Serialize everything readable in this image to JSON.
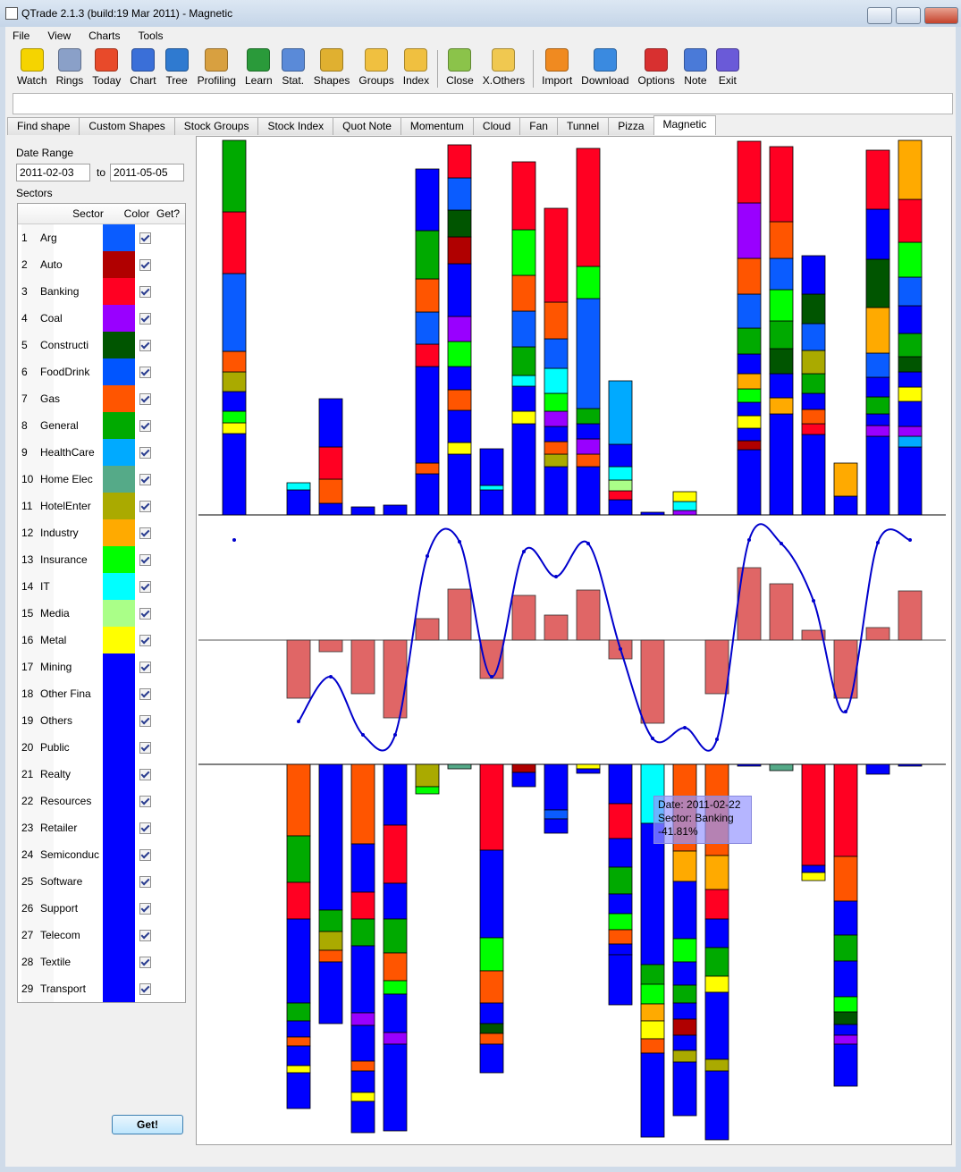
{
  "window": {
    "title": "QTrade 2.1.3 (build:19 Mar 2011) - Magnetic"
  },
  "menu": [
    "File",
    "View",
    "Charts",
    "Tools"
  ],
  "toolbar": [
    [
      "Watch",
      "Rings",
      "Today",
      "Chart",
      "Tree",
      "Profiling",
      "Learn",
      "Stat.",
      "Shapes",
      "Groups",
      "Index"
    ],
    [
      "Close",
      "X.Others"
    ],
    [
      "Import",
      "Download",
      "Options",
      "Note",
      "Exit"
    ]
  ],
  "tabs": {
    "items": [
      "Find shape",
      "Custom Shapes",
      "Stock Groups",
      "Stock Index",
      "Quot Note",
      "Momentum",
      "Cloud",
      "Fan",
      "Tunnel",
      "Pizza",
      "Magnetic"
    ],
    "active": 10
  },
  "panel": {
    "date_range_label": "Date Range",
    "from": "2011-02-03",
    "to_label": "to",
    "to": "2011-05-05",
    "sectors_label": "Sectors",
    "button": "Get!"
  },
  "sectors": {
    "columns": [
      "Sector",
      "Color",
      "Get?"
    ],
    "rows": [
      {
        "no": 1,
        "name": "Arg",
        "color": "#0a5cff",
        "get": true
      },
      {
        "no": 2,
        "name": "Auto",
        "color": "#b00000",
        "get": true
      },
      {
        "no": 3,
        "name": "Banking",
        "color": "#ff0022",
        "get": true
      },
      {
        "no": 4,
        "name": "Coal",
        "color": "#9900ff",
        "get": true
      },
      {
        "no": 5,
        "name": "Constructi",
        "color": "#005500",
        "get": true
      },
      {
        "no": 6,
        "name": "FoodDrink",
        "color": "#0055ff",
        "get": true
      },
      {
        "no": 7,
        "name": "Gas",
        "color": "#ff5500",
        "get": true
      },
      {
        "no": 8,
        "name": "General",
        "color": "#00aa00",
        "get": true
      },
      {
        "no": 9,
        "name": "HealthCare",
        "color": "#00aaff",
        "get": true
      },
      {
        "no": 10,
        "name": "Home Elec",
        "color": "#55aa88",
        "get": true
      },
      {
        "no": 11,
        "name": "HotelEnter",
        "color": "#aaaa00",
        "get": true
      },
      {
        "no": 12,
        "name": "Industry",
        "color": "#ffaa00",
        "get": true
      },
      {
        "no": 13,
        "name": "Insurance",
        "color": "#00ff00",
        "get": true
      },
      {
        "no": 14,
        "name": "IT",
        "color": "#00ffff",
        "get": true
      },
      {
        "no": 15,
        "name": "Media",
        "color": "#aaff88",
        "get": true
      },
      {
        "no": 16,
        "name": "Metal",
        "color": "#ffff00",
        "get": true
      },
      {
        "no": 17,
        "name": "Mining",
        "color": "#0000ff",
        "get": true
      },
      {
        "no": 18,
        "name": "Other Fina",
        "color": "#0000ff",
        "get": true
      },
      {
        "no": 19,
        "name": "Others",
        "color": "#0000ff",
        "get": true
      },
      {
        "no": 20,
        "name": "Public",
        "color": "#0000ff",
        "get": true
      },
      {
        "no": 21,
        "name": "Realty",
        "color": "#0000ff",
        "get": true
      },
      {
        "no": 22,
        "name": "Resources",
        "color": "#0000ff",
        "get": true
      },
      {
        "no": 23,
        "name": "Retailer",
        "color": "#0000ff",
        "get": true
      },
      {
        "no": 24,
        "name": "Semiconduc",
        "color": "#0000ff",
        "get": true
      },
      {
        "no": 25,
        "name": "Software",
        "color": "#0000ff",
        "get": true
      },
      {
        "no": 26,
        "name": "Support",
        "color": "#0000ff",
        "get": true
      },
      {
        "no": 27,
        "name": "Telecom",
        "color": "#0000ff",
        "get": true
      },
      {
        "no": 28,
        "name": "Textile",
        "color": "#0000ff",
        "get": true
      },
      {
        "no": 29,
        "name": "Transport",
        "color": "#0000ff",
        "get": true
      }
    ]
  },
  "chart_data": [
    {
      "type": "stacked-bar",
      "direction": "up",
      "ylim": [
        0,
        420
      ],
      "stacks": [
        [
          [
            16,
            91
          ],
          [
            15,
            12
          ],
          [
            12,
            13
          ],
          [
            17,
            22
          ],
          [
            10,
            22
          ],
          [
            6,
            23
          ],
          [
            0,
            87
          ],
          [
            2,
            69
          ],
          [
            7,
            80
          ]
        ],
        [],
        [
          [
            16,
            28
          ],
          [
            13,
            8
          ]
        ],
        [
          [
            16,
            13
          ],
          [
            6,
            27
          ],
          [
            2,
            36
          ],
          [
            17,
            54
          ]
        ],
        [
          [
            16,
            9
          ]
        ],
        [
          [
            16,
            11
          ]
        ],
        [
          [
            16,
            46
          ],
          [
            6,
            12
          ],
          [
            17,
            108
          ],
          [
            2,
            25
          ],
          [
            0,
            36
          ],
          [
            6,
            37
          ],
          [
            7,
            54
          ],
          [
            18,
            69
          ]
        ],
        [
          [
            16,
            68
          ],
          [
            15,
            13
          ],
          [
            17,
            36
          ],
          [
            6,
            23
          ],
          [
            18,
            26
          ],
          [
            12,
            28
          ],
          [
            3,
            28
          ],
          [
            19,
            59
          ],
          [
            1,
            30
          ],
          [
            4,
            30
          ],
          [
            0,
            36
          ],
          [
            2,
            37
          ]
        ],
        [
          [
            16,
            28
          ],
          [
            13,
            5
          ],
          [
            17,
            41
          ]
        ],
        [
          [
            16,
            102
          ],
          [
            15,
            14
          ],
          [
            17,
            28
          ],
          [
            13,
            12
          ],
          [
            7,
            32
          ],
          [
            0,
            40
          ],
          [
            6,
            40
          ],
          [
            12,
            51
          ],
          [
            2,
            76
          ]
        ],
        [
          [
            16,
            54
          ],
          [
            10,
            14
          ],
          [
            6,
            14
          ],
          [
            17,
            17
          ],
          [
            3,
            17
          ],
          [
            12,
            20
          ],
          [
            13,
            28
          ],
          [
            0,
            33
          ],
          [
            6,
            41
          ],
          [
            2,
            105
          ]
        ],
        [
          [
            16,
            54
          ],
          [
            6,
            14
          ],
          [
            3,
            17
          ],
          [
            17,
            17
          ],
          [
            7,
            17
          ],
          [
            0,
            123
          ],
          [
            12,
            36
          ],
          [
            2,
            132
          ]
        ],
        [
          [
            16,
            17
          ],
          [
            2,
            10
          ],
          [
            14,
            12
          ],
          [
            13,
            15
          ],
          [
            17,
            25
          ],
          [
            8,
            71
          ]
        ],
        [
          [
            16,
            3
          ]
        ],
        [
          [
            3,
            5
          ],
          [
            13,
            10
          ],
          [
            15,
            11
          ]
        ],
        [],
        [
          [
            16,
            73
          ],
          [
            1,
            10
          ],
          [
            17,
            14
          ],
          [
            15,
            14
          ],
          [
            18,
            15
          ],
          [
            12,
            15
          ],
          [
            11,
            17
          ],
          [
            19,
            22
          ],
          [
            7,
            29
          ],
          [
            0,
            38
          ],
          [
            6,
            40
          ],
          [
            3,
            62
          ],
          [
            2,
            69
          ]
        ],
        [
          [
            16,
            113
          ],
          [
            11,
            18
          ],
          [
            17,
            27
          ],
          [
            4,
            28
          ],
          [
            7,
            31
          ],
          [
            12,
            35
          ],
          [
            0,
            35
          ],
          [
            6,
            41
          ],
          [
            2,
            84
          ]
        ],
        [
          [
            16,
            90
          ],
          [
            2,
            12
          ],
          [
            6,
            16
          ],
          [
            17,
            18
          ],
          [
            7,
            22
          ],
          [
            10,
            26
          ],
          [
            0,
            30
          ],
          [
            4,
            33
          ],
          [
            18,
            43
          ]
        ],
        [
          [
            16,
            21
          ],
          [
            11,
            37
          ]
        ],
        [
          [
            16,
            88
          ],
          [
            3,
            12
          ],
          [
            17,
            13
          ],
          [
            7,
            19
          ],
          [
            18,
            22
          ],
          [
            0,
            27
          ],
          [
            11,
            51
          ],
          [
            4,
            54
          ],
          [
            19,
            56
          ],
          [
            2,
            66
          ]
        ],
        [
          [
            16,
            76
          ],
          [
            8,
            12
          ],
          [
            3,
            11
          ],
          [
            17,
            28
          ],
          [
            15,
            16
          ],
          [
            18,
            17
          ],
          [
            4,
            17
          ],
          [
            7,
            26
          ],
          [
            19,
            31
          ],
          [
            0,
            32
          ],
          [
            12,
            39
          ],
          [
            2,
            48
          ],
          [
            11,
            66
          ]
        ]
      ]
    },
    {
      "type": "bar-line",
      "ylim": [
        -140,
        140
      ],
      "bar_color": "#e06666",
      "line_color": "#0000cc",
      "values": [
        0,
        0,
        -65,
        -13,
        -60,
        -87,
        24,
        57,
        -43,
        50,
        28,
        56,
        -21,
        -93,
        0,
        -60,
        81,
        63,
        11,
        -65,
        14,
        55
      ],
      "line": [
        112,
        null,
        -91,
        -41,
        -106,
        -106,
        94,
        110,
        -41,
        99,
        71,
        108,
        -10,
        -110,
        -98,
        -111,
        112,
        108,
        44,
        -80,
        109,
        112
      ]
    },
    {
      "type": "stacked-bar",
      "direction": "down",
      "ylim": [
        0,
        420
      ],
      "stacks": [
        [],
        [],
        [
          [
            6,
            80
          ],
          [
            7,
            52
          ],
          [
            2,
            41
          ],
          [
            16,
            94
          ],
          [
            7,
            20
          ],
          [
            17,
            18
          ],
          [
            6,
            10
          ],
          [
            18,
            22
          ],
          [
            15,
            8
          ],
          [
            16,
            40
          ]
        ],
        [
          [
            16,
            163
          ],
          [
            7,
            24
          ],
          [
            10,
            21
          ],
          [
            6,
            13
          ],
          [
            17,
            69
          ]
        ],
        [
          [
            6,
            89
          ],
          [
            16,
            54
          ],
          [
            2,
            30
          ],
          [
            7,
            30
          ],
          [
            17,
            75
          ],
          [
            3,
            14
          ],
          [
            18,
            40
          ],
          [
            6,
            11
          ],
          [
            16,
            24
          ],
          [
            15,
            10
          ],
          [
            17,
            35
          ]
        ],
        [
          [
            16,
            68
          ],
          [
            2,
            65
          ],
          [
            17,
            40
          ],
          [
            7,
            38
          ],
          [
            6,
            31
          ],
          [
            12,
            15
          ],
          [
            18,
            43
          ],
          [
            3,
            13
          ],
          [
            16,
            97
          ]
        ],
        [
          [
            10,
            25
          ],
          [
            12,
            8
          ]
        ],
        [
          [
            9,
            5
          ]
        ],
        [
          [
            2,
            96
          ],
          [
            16,
            98
          ],
          [
            12,
            37
          ],
          [
            6,
            36
          ],
          [
            17,
            23
          ],
          [
            4,
            11
          ],
          [
            6,
            12
          ],
          [
            18,
            32
          ]
        ],
        [
          [
            1,
            9
          ],
          [
            16,
            16
          ]
        ],
        [
          [
            16,
            51
          ],
          [
            0,
            10
          ],
          [
            17,
            16
          ]
        ],
        [
          [
            15,
            5
          ],
          [
            16,
            5
          ]
        ],
        [
          [
            16,
            44
          ],
          [
            2,
            39
          ],
          [
            17,
            32
          ],
          [
            7,
            30
          ],
          [
            18,
            22
          ],
          [
            12,
            18
          ],
          [
            6,
            16
          ],
          [
            19,
            12
          ],
          [
            16,
            56
          ]
        ],
        [
          [
            13,
            66
          ],
          [
            16,
            158
          ],
          [
            7,
            22
          ],
          [
            12,
            22
          ],
          [
            11,
            19
          ],
          [
            15,
            20
          ],
          [
            6,
            16
          ],
          [
            17,
            94
          ]
        ],
        [
          [
            6,
            97
          ],
          [
            11,
            34
          ],
          [
            16,
            64
          ],
          [
            12,
            26
          ],
          [
            17,
            26
          ],
          [
            7,
            20
          ],
          [
            18,
            18
          ],
          [
            1,
            18
          ],
          [
            19,
            17
          ],
          [
            10,
            13
          ],
          [
            16,
            60
          ]
        ],
        [
          [
            6,
            102
          ],
          [
            11,
            38
          ],
          [
            2,
            33
          ],
          [
            16,
            32
          ],
          [
            7,
            32
          ],
          [
            15,
            18
          ],
          [
            17,
            75
          ],
          [
            10,
            13
          ],
          [
            18,
            77
          ]
        ],
        [
          [
            16,
            2
          ]
        ],
        [
          [
            9,
            7
          ]
        ],
        [
          [
            2,
            113
          ],
          [
            16,
            8
          ],
          [
            15,
            9
          ]
        ],
        [
          [
            2,
            103
          ],
          [
            6,
            50
          ],
          [
            16,
            38
          ],
          [
            7,
            29
          ],
          [
            17,
            40
          ],
          [
            12,
            17
          ],
          [
            4,
            14
          ],
          [
            18,
            12
          ],
          [
            3,
            10
          ],
          [
            16,
            47
          ]
        ],
        [
          [
            16,
            11
          ]
        ],
        [
          [
            16,
            2
          ]
        ]
      ]
    }
  ],
  "tooltip": {
    "lines": [
      "Date: 2011-02-22",
      "Sector: Banking",
      "-41.81%"
    ]
  }
}
